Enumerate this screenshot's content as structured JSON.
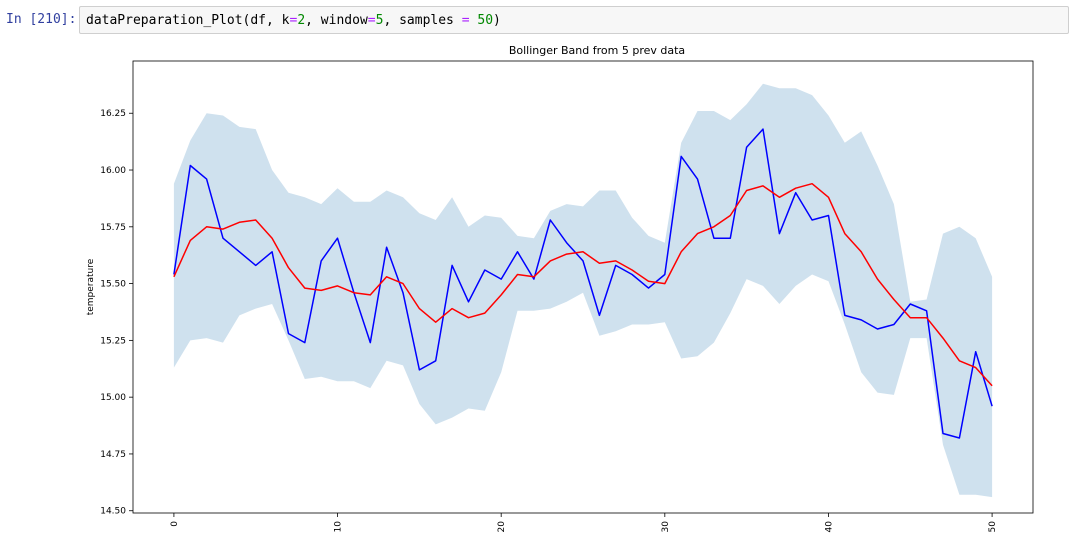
{
  "notebook": {
    "prompt": "In [210]:",
    "code": {
      "fn": "dataPreparation_Plot(df, k",
      "eq1": "=",
      "k": "2",
      "mid1": ", window",
      "eq2": "=",
      "window": "5",
      "mid2": ", samples ",
      "eq3": "=",
      "samples_pre": " ",
      "samples": "50",
      "end": ")"
    }
  },
  "chart_data": {
    "type": "line",
    "title": "Bollinger Band from 5 prev data",
    "xlabel": "",
    "ylabel": "temperature",
    "xlim": [
      -2.5,
      52.5
    ],
    "ylim": [
      14.49,
      16.48
    ],
    "xticks": [
      0,
      10,
      20,
      30,
      40,
      50
    ],
    "yticks": [
      14.5,
      14.75,
      15.0,
      15.25,
      15.5,
      15.75,
      16.0,
      16.25
    ],
    "ytick_labels": [
      "14.50",
      "14.75",
      "15.00",
      "15.25",
      "15.50",
      "15.75",
      "16.00",
      "16.25"
    ],
    "grid": false,
    "colors": {
      "band": "#cfe1ee",
      "series": "#0000ff",
      "moving_average": "#ff0000"
    },
    "x": [
      0,
      1,
      2,
      3,
      4,
      5,
      6,
      7,
      8,
      9,
      10,
      11,
      12,
      13,
      14,
      15,
      16,
      17,
      18,
      19,
      20,
      21,
      22,
      23,
      24,
      25,
      26,
      27,
      28,
      29,
      30,
      31,
      32,
      33,
      34,
      35,
      36,
      37,
      38,
      39,
      40,
      41,
      42,
      43,
      44,
      45,
      46,
      47,
      48,
      49,
      50
    ],
    "series": [
      {
        "values": [
          15.54,
          16.02,
          15.96,
          15.7,
          15.64,
          15.58,
          15.64,
          15.28,
          15.24,
          15.6,
          15.7,
          15.46,
          15.24,
          15.66,
          15.46,
          15.12,
          15.16,
          15.58,
          15.42,
          15.56,
          15.52,
          15.64,
          15.52,
          15.78,
          15.68,
          15.6,
          15.36,
          15.58,
          15.54,
          15.48,
          15.54,
          16.06,
          15.96,
          15.7,
          15.7,
          16.1,
          16.18,
          15.72,
          15.9,
          15.78,
          15.8,
          15.36,
          15.34,
          15.3,
          15.32,
          15.41,
          15.38,
          14.84,
          14.82,
          15.2,
          14.96
        ]
      },
      {
        "values": [
          15.53,
          15.69,
          15.75,
          15.74,
          15.77,
          15.78,
          15.7,
          15.57,
          15.48,
          15.47,
          15.49,
          15.46,
          15.45,
          15.53,
          15.5,
          15.39,
          15.33,
          15.39,
          15.35,
          15.37,
          15.45,
          15.54,
          15.53,
          15.6,
          15.63,
          15.64,
          15.59,
          15.6,
          15.56,
          15.51,
          15.5,
          15.64,
          15.72,
          15.75,
          15.8,
          15.91,
          15.93,
          15.88,
          15.92,
          15.94,
          15.88,
          15.72,
          15.64,
          15.52,
          15.43,
          15.35,
          15.35,
          15.26,
          15.16,
          15.13,
          15.05
        ]
      }
    ],
    "band_upper": [
      15.94,
      16.13,
      16.25,
      16.24,
      16.19,
      16.18,
      16.0,
      15.9,
      15.88,
      15.85,
      15.92,
      15.86,
      15.86,
      15.91,
      15.88,
      15.81,
      15.78,
      15.88,
      15.75,
      15.8,
      15.79,
      15.71,
      15.7,
      15.82,
      15.85,
      15.84,
      15.91,
      15.91,
      15.79,
      15.71,
      15.68,
      16.12,
      16.26,
      16.26,
      16.22,
      16.29,
      16.38,
      16.36,
      16.36,
      16.33,
      16.24,
      16.12,
      16.17,
      16.02,
      15.85,
      15.42,
      15.43,
      15.72,
      15.75,
      15.7,
      15.53
    ],
    "band_lower": [
      15.13,
      15.25,
      15.26,
      15.24,
      15.36,
      15.39,
      15.41,
      15.25,
      15.08,
      15.09,
      15.07,
      15.07,
      15.04,
      15.16,
      15.14,
      14.97,
      14.88,
      14.91,
      14.95,
      14.94,
      15.11,
      15.38,
      15.38,
      15.39,
      15.42,
      15.46,
      15.27,
      15.29,
      15.32,
      15.32,
      15.33,
      15.17,
      15.18,
      15.24,
      15.37,
      15.52,
      15.49,
      15.41,
      15.49,
      15.54,
      15.51,
      15.32,
      15.11,
      15.02,
      15.01,
      15.26,
      15.26,
      14.79,
      14.57,
      14.57,
      14.56
    ]
  }
}
